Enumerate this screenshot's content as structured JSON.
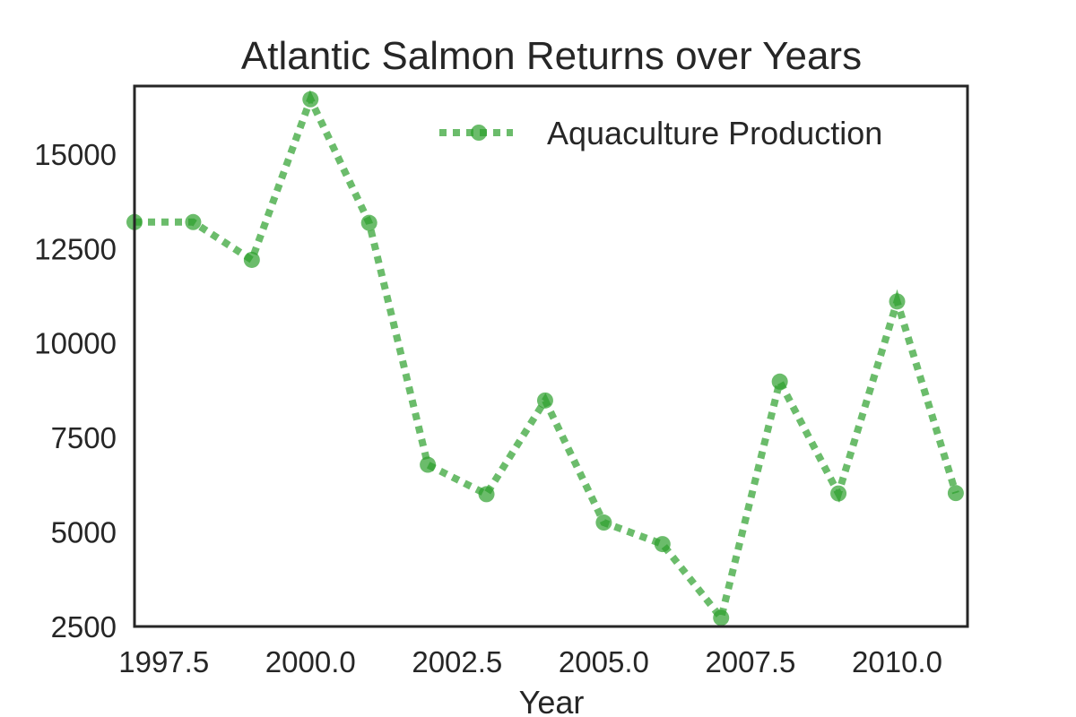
{
  "chart_data": {
    "type": "line",
    "title": "Atlantic Salmon Returns over Years",
    "xlabel": "Year",
    "ylabel": "",
    "xlim": [
      1997.0,
      2011.2
    ],
    "ylim": [
      2500,
      16800
    ],
    "x_ticks": [
      1997.5,
      2000.0,
      2002.5,
      2005.0,
      2007.5,
      2010.0
    ],
    "x_tick_labels": [
      "1997.5",
      "2000.0",
      "2002.5",
      "2005.0",
      "2007.5",
      "2010.0"
    ],
    "y_ticks": [
      2500,
      5000,
      7500,
      10000,
      12500,
      15000
    ],
    "y_tick_labels": [
      "2500",
      "5000",
      "7500",
      "10000",
      "12500",
      "15000"
    ],
    "grid": false,
    "legend_position": "top-right",
    "series": [
      {
        "name": "Aquaculture Production",
        "color": "#2ca02c",
        "line_style": "dotted",
        "marker": "circle",
        "x": [
          1997,
          1998,
          1999,
          2000,
          2001,
          2002,
          2003,
          2004,
          2005,
          2006,
          2007,
          2008,
          2009,
          2010,
          2011
        ],
        "values": [
          13200,
          13200,
          12200,
          16450,
          13180,
          6780,
          6000,
          8480,
          5250,
          4680,
          2730,
          8980,
          6020,
          11100,
          6030
        ]
      }
    ]
  }
}
